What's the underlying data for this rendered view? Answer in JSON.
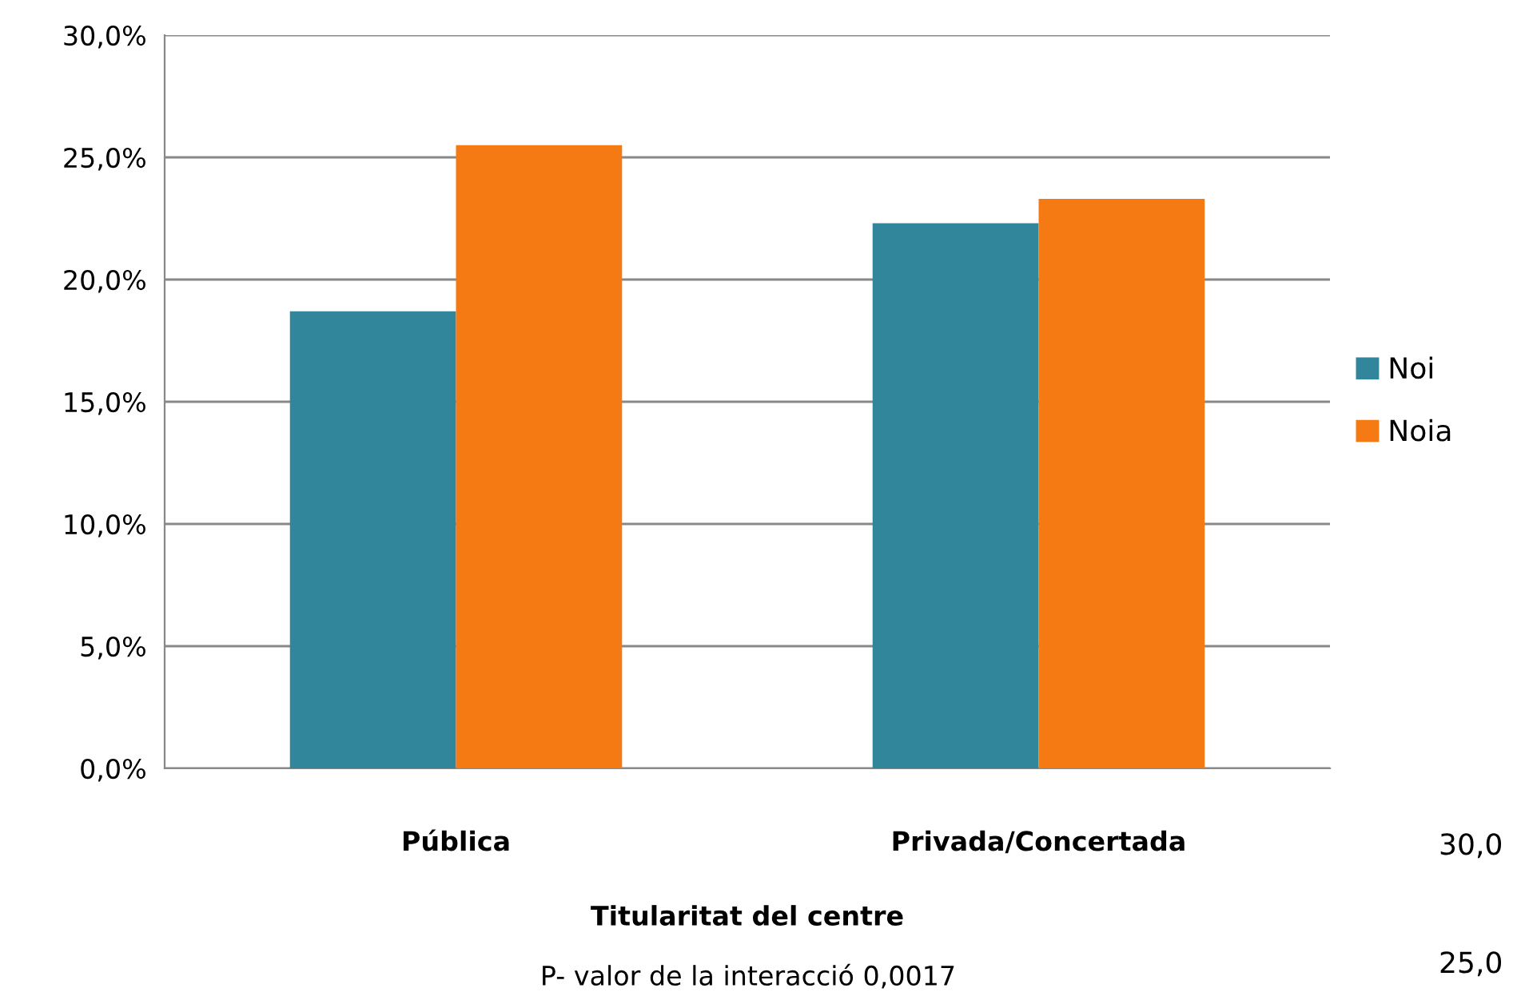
{
  "chart_data": {
    "type": "bar",
    "categories": [
      "Pública",
      "Privada/Concertada"
    ],
    "xlabel": "Titularitat del centre",
    "series": [
      {
        "name": "Noi",
        "color": "#31869b",
        "values": [
          18.7,
          22.3
        ]
      },
      {
        "name": "Noia",
        "color": "#f57a14",
        "values": [
          25.5,
          23.3
        ]
      }
    ],
    "ylim": [
      0,
      30
    ],
    "yticks": [
      {
        "value": 0,
        "label": "0,0%"
      },
      {
        "value": 5,
        "label": "5,0%"
      },
      {
        "value": 10,
        "label": "10,0%"
      },
      {
        "value": 15,
        "label": "15,0%"
      },
      {
        "value": 20,
        "label": "20,0%"
      },
      {
        "value": 25,
        "label": "25,0%"
      },
      {
        "value": 30,
        "label": "30,0%"
      }
    ],
    "grid": "y",
    "legend": "right",
    "annotations": [
      "P- valor de la interacció 0,0017",
      "30,0",
      "25,0"
    ]
  }
}
